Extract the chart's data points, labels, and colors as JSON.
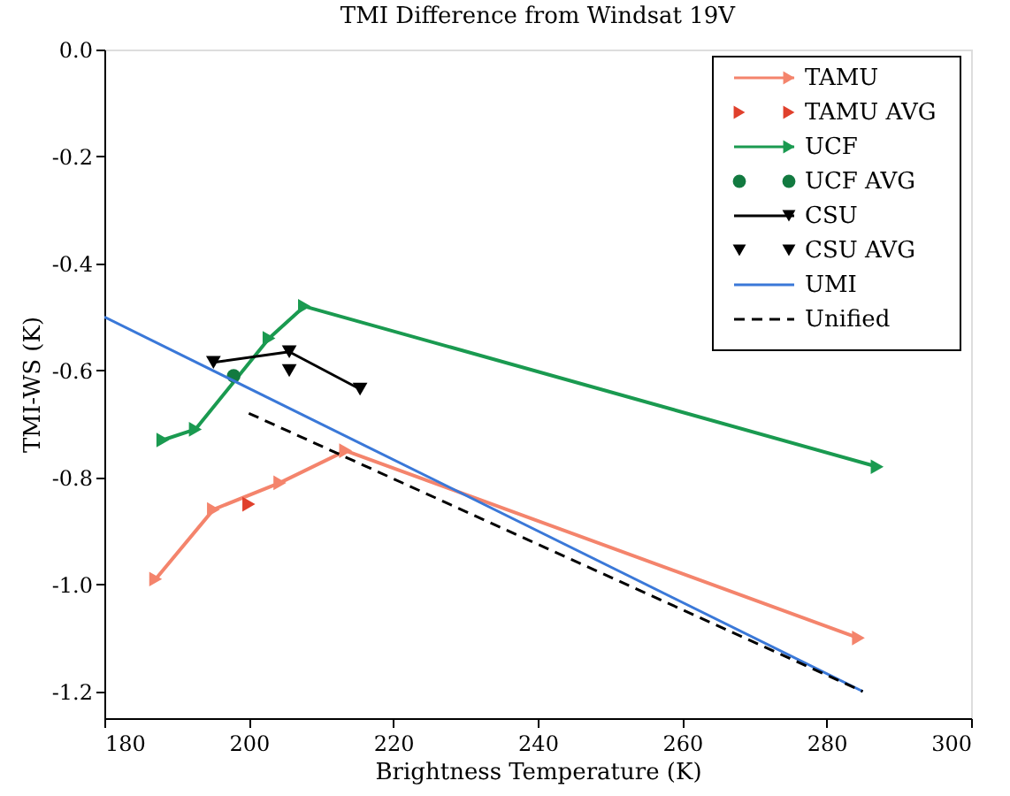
{
  "chart_data": {
    "type": "line",
    "title": "TMI Difference from Windsat 19V",
    "xlabel": "Brightness Temperature (K)",
    "ylabel": "TMI-WS (K)",
    "xlim": [
      180,
      300
    ],
    "xticks": [
      180,
      200,
      220,
      240,
      260,
      280,
      300
    ],
    "ylim": [
      -1.25,
      0.0
    ],
    "yticks": [
      {
        "value": 0,
        "label": "0.0"
      },
      -0.2,
      -0.4,
      -0.6,
      -0.8,
      {
        "value": -1,
        "label": "-1.0"
      },
      -1.2
    ],
    "grid": false,
    "legend": "top right",
    "series": [
      {
        "name": "TAMU",
        "type": "line",
        "color": "#f4846c",
        "marker": "triangle",
        "line_style": "solid",
        "x": [
          187.1,
          195.1,
          204.3,
          213.4,
          284.4
        ],
        "values": [
          -0.99,
          -0.86,
          -0.81,
          -0.75,
          -1.1
        ]
      },
      {
        "name": "TAMU AVG",
        "type": "scatter",
        "color": "#e0402c",
        "marker": "triangle",
        "x": [
          200.0
        ],
        "values": [
          -0.85
        ]
      },
      {
        "name": "UCF",
        "type": "line",
        "color": "#1a9a50",
        "marker": "triangle",
        "line_style": "solid",
        "x": [
          188.1,
          192.6,
          202.8,
          207.7,
          287.0
        ],
        "values": [
          -0.73,
          -0.71,
          -0.54,
          -0.48,
          -0.78
        ]
      },
      {
        "name": "UCF AVG",
        "type": "scatter",
        "color": "#127a40",
        "marker": "circle",
        "x": [
          197.9
        ],
        "values": [
          -0.61
        ]
      },
      {
        "name": "CSU",
        "type": "line",
        "color": "#000000",
        "marker": "triangle_down",
        "line_style": "solid",
        "x": [
          195.1,
          205.6,
          215.4
        ],
        "values": [
          -0.585,
          -0.565,
          -0.635
        ]
      },
      {
        "name": "CSU AVG",
        "type": "scatter",
        "color": "#000000",
        "marker": "triangle_down",
        "x": [
          205.6
        ],
        "values": [
          -0.6
        ]
      },
      {
        "name": "UMI",
        "type": "line",
        "color": "#3a78d8",
        "marker": "none",
        "line_style": "solid",
        "x": [
          180.0,
          285.0
        ],
        "values": [
          -0.5,
          -1.2
        ]
      },
      {
        "name": "Unified",
        "type": "line",
        "color": "#000000",
        "marker": "none",
        "line_style": "dashed",
        "x": [
          200.0,
          285.0
        ],
        "values": [
          -0.68,
          -1.2
        ]
      }
    ]
  }
}
